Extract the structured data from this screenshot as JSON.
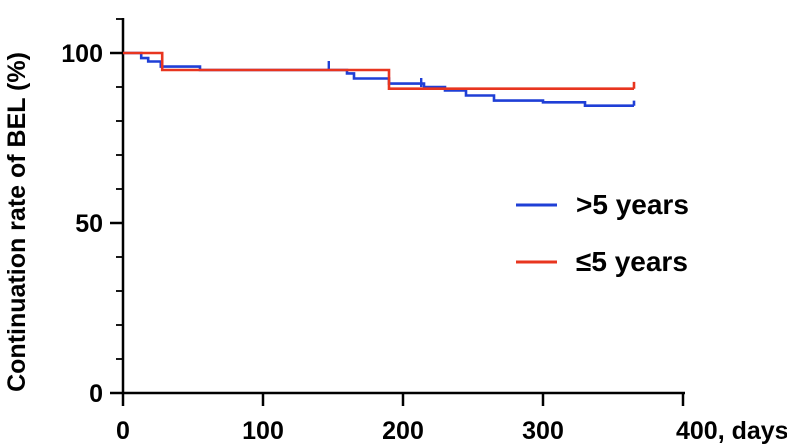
{
  "chart_data": {
    "type": "line",
    "title": "",
    "xlabel": "400, days",
    "ylabel": "Continuation rate of BEL (%)",
    "xlim": [
      0,
      400
    ],
    "ylim": [
      0,
      100
    ],
    "x_ticks": [
      0,
      100,
      200,
      300
    ],
    "y_ticks": [
      0,
      50,
      100
    ],
    "grid": false,
    "legend_position": "right",
    "series": [
      {
        "name": ">5 years",
        "color": "#1f3fd6",
        "steps": [
          [
            0,
            100
          ],
          [
            13,
            98.5
          ],
          [
            18,
            97.5
          ],
          [
            27,
            96
          ],
          [
            55,
            95
          ],
          [
            160,
            94
          ],
          [
            165,
            92.5
          ],
          [
            190,
            91
          ],
          [
            215,
            90
          ],
          [
            230,
            89
          ],
          [
            245,
            87.5
          ],
          [
            265,
            86
          ],
          [
            300,
            85.5
          ],
          [
            330,
            84.5
          ],
          [
            365,
            84.5
          ]
        ],
        "end_x": 365,
        "end_censor_to": 86,
        "censor_marks": [
          [
            147,
            95
          ],
          [
            213,
            90
          ]
        ]
      },
      {
        "name": "≤5 years",
        "color": "#e8351f",
        "steps": [
          [
            0,
            100
          ],
          [
            28,
            95
          ],
          [
            170,
            95
          ],
          [
            190,
            89.5
          ],
          [
            235,
            89.5
          ],
          [
            365,
            89.5
          ]
        ],
        "end_x": 365,
        "end_censor_to": 91.5,
        "censor_marks": []
      }
    ]
  }
}
